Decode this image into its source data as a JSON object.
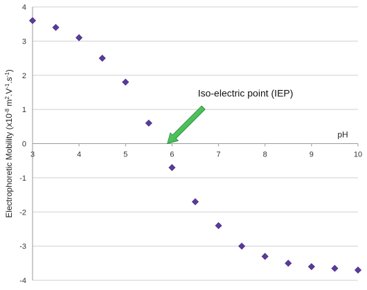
{
  "chart_data": {
    "type": "scatter",
    "xlabel": "pH",
    "ylabel": "Electrophoretic Mobility (x10",
    "ylabel_exp1": "-8",
    "ylabel_mid": " m",
    "ylabel_exp2": "2",
    "ylabel_mid2": ".V",
    "ylabel_exp3": "-1",
    "ylabel_mid3": ".s",
    "ylabel_exp4": "-1",
    "ylabel_end": ")",
    "xlim": [
      3,
      10
    ],
    "ylim": [
      -4,
      4
    ],
    "x_ticks": [
      "3",
      "4",
      "5",
      "6",
      "7",
      "8",
      "9",
      "10"
    ],
    "y_ticks": [
      "4",
      "3",
      "2",
      "1",
      "0",
      "-1",
      "-2",
      "-3",
      "-4"
    ],
    "grid": true,
    "marker_color": "#5b3a9e",
    "series": [
      {
        "x": [
          3,
          3.5,
          4,
          4.5,
          5,
          5.5,
          6,
          6.5,
          7,
          7.5,
          8,
          8.5,
          9,
          9.5,
          10
        ],
        "y": [
          3.6,
          3.4,
          3.1,
          2.5,
          1.8,
          0.6,
          -0.7,
          -1.7,
          -2.4,
          -3.0,
          -3.3,
          -3.5,
          -3.6,
          -3.65,
          -3.7
        ]
      }
    ],
    "annotation": {
      "text": "Iso-electric point (IEP)",
      "target_x": 5.9,
      "target_y": 0,
      "arrow_color": "#22aa44"
    }
  }
}
